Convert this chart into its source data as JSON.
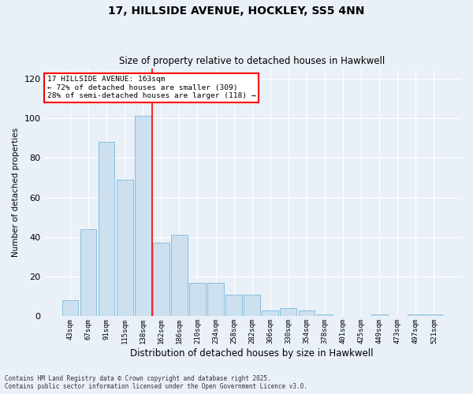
{
  "title1": "17, HILLSIDE AVENUE, HOCKLEY, SS5 4NN",
  "title2": "Size of property relative to detached houses in Hawkwell",
  "xlabel": "Distribution of detached houses by size in Hawkwell",
  "ylabel": "Number of detached properties",
  "categories": [
    "43sqm",
    "67sqm",
    "91sqm",
    "115sqm",
    "138sqm",
    "162sqm",
    "186sqm",
    "210sqm",
    "234sqm",
    "258sqm",
    "282sqm",
    "306sqm",
    "330sqm",
    "354sqm",
    "378sqm",
    "401sqm",
    "425sqm",
    "449sqm",
    "473sqm",
    "497sqm",
    "521sqm"
  ],
  "values": [
    8,
    44,
    88,
    69,
    101,
    37,
    41,
    17,
    17,
    11,
    11,
    3,
    4,
    3,
    1,
    0,
    0,
    1,
    0,
    1,
    1
  ],
  "bar_color": "#cce0f0",
  "bar_edge_color": "#7ab8d9",
  "highlight_line_color": "red",
  "annotation_line1": "17 HILLSIDE AVENUE: 163sqm",
  "annotation_line2": "← 72% of detached houses are smaller (309)",
  "annotation_line3": "28% of semi-detached houses are larger (118) →",
  "annotation_box_color": "white",
  "annotation_box_edge": "red",
  "ylim": [
    0,
    125
  ],
  "yticks": [
    0,
    20,
    40,
    60,
    80,
    100,
    120
  ],
  "bg_color": "#eaf0f8",
  "grid_color": "white",
  "footer1": "Contains HM Land Registry data © Crown copyright and database right 2025.",
  "footer2": "Contains public sector information licensed under the Open Government Licence v3.0."
}
